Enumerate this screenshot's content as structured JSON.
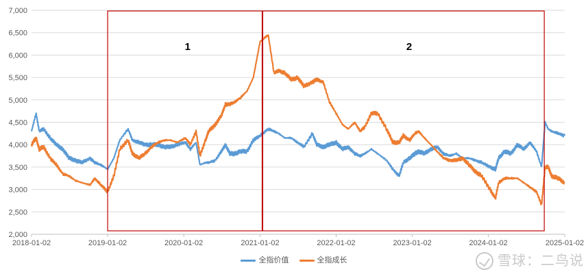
{
  "chart_data": {
    "type": "line",
    "title": "",
    "xlabel": "",
    "ylabel": "",
    "ylim": [
      2000,
      7000
    ],
    "xlim": [
      "2018-01-02",
      "2025-01-02"
    ],
    "yticks": [
      "2,000",
      "2,500",
      "3,000",
      "3,500",
      "4,000",
      "4,500",
      "5,000",
      "5,500",
      "6,000",
      "6,500",
      "7,000"
    ],
    "xticks": [
      "2018-01-02",
      "2019-01-02",
      "2020-01-02",
      "2021-01-02",
      "2022-01-02",
      "2023-01-02",
      "2024-01-02",
      "2025-01-02"
    ],
    "grid": true,
    "legend": "bottom",
    "series": [
      {
        "name": "全指价值",
        "color": "#5b9bd5",
        "x": [
          "2018-01-02",
          "2018-01-24",
          "2018-02-08",
          "2018-03-01",
          "2018-04-01",
          "2018-05-01",
          "2018-06-01",
          "2018-07-01",
          "2018-08-01",
          "2018-09-01",
          "2018-10-10",
          "2018-11-01",
          "2018-12-01",
          "2019-01-02",
          "2019-02-01",
          "2019-03-01",
          "2019-04-10",
          "2019-05-01",
          "2019-06-01",
          "2019-07-01",
          "2019-08-01",
          "2019-09-01",
          "2019-10-01",
          "2019-11-01",
          "2019-12-01",
          "2020-01-10",
          "2020-02-03",
          "2020-03-01",
          "2020-03-20",
          "2020-04-15",
          "2020-05-01",
          "2020-06-01",
          "2020-07-01",
          "2020-07-20",
          "2020-08-10",
          "2020-09-01",
          "2020-10-01",
          "2020-11-01",
          "2020-12-01",
          "2021-01-02",
          "2021-02-10",
          "2021-03-10",
          "2021-04-01",
          "2021-05-01",
          "2021-06-01",
          "2021-07-01",
          "2021-08-01",
          "2021-09-10",
          "2021-10-01",
          "2021-11-01",
          "2021-12-01",
          "2022-01-02",
          "2022-02-01",
          "2022-03-01",
          "2022-04-01",
          "2022-04-27",
          "2022-05-20",
          "2022-06-20",
          "2022-07-20",
          "2022-09-01",
          "2022-10-01",
          "2022-10-31",
          "2022-11-20",
          "2022-12-20",
          "2023-01-15",
          "2023-02-01",
          "2023-03-01",
          "2023-04-01",
          "2023-05-01",
          "2023-06-01",
          "2023-07-01",
          "2023-08-01",
          "2023-09-01",
          "2023-10-01",
          "2023-11-01",
          "2023-12-01",
          "2024-01-10",
          "2024-02-05",
          "2024-02-20",
          "2024-03-20",
          "2024-04-20",
          "2024-05-20",
          "2024-06-20",
          "2024-07-20",
          "2024-08-20",
          "2024-09-13",
          "2024-09-30",
          "2024-10-15",
          "2024-11-01",
          "2024-12-01",
          "2025-01-02"
        ],
        "y": [
          4300,
          4700,
          4300,
          4350,
          4150,
          4000,
          3900,
          3700,
          3650,
          3600,
          3700,
          3600,
          3550,
          3450,
          3700,
          4100,
          4350,
          4100,
          4050,
          4000,
          4000,
          4000,
          3950,
          3950,
          4000,
          4050,
          3900,
          4050,
          3550,
          3600,
          3600,
          3650,
          3850,
          4000,
          3800,
          3800,
          3850,
          3850,
          4100,
          4200,
          4350,
          4300,
          4250,
          4150,
          4150,
          4050,
          3950,
          4250,
          4000,
          3950,
          4000,
          4050,
          3900,
          3950,
          3800,
          3750,
          3800,
          3900,
          3800,
          3650,
          3450,
          3300,
          3600,
          3700,
          3800,
          3850,
          3800,
          3900,
          3950,
          3800,
          3750,
          3800,
          3700,
          3700,
          3650,
          3600,
          3500,
          3450,
          3700,
          3850,
          3800,
          4000,
          3900,
          4050,
          3850,
          3500,
          4500,
          4350,
          4300,
          4250,
          4200
        ]
      },
      {
        "name": "全指成长",
        "color": "#ed7d31",
        "x": [
          "2018-01-02",
          "2018-01-24",
          "2018-02-08",
          "2018-03-01",
          "2018-04-01",
          "2018-05-01",
          "2018-06-01",
          "2018-07-01",
          "2018-08-01",
          "2018-09-01",
          "2018-10-10",
          "2018-11-01",
          "2018-12-01",
          "2019-01-02",
          "2019-02-01",
          "2019-03-01",
          "2019-04-10",
          "2019-05-01",
          "2019-06-01",
          "2019-07-01",
          "2019-08-01",
          "2019-09-01",
          "2019-10-01",
          "2019-11-01",
          "2019-12-01",
          "2020-01-10",
          "2020-02-03",
          "2020-03-01",
          "2020-03-20",
          "2020-04-15",
          "2020-05-01",
          "2020-06-01",
          "2020-07-01",
          "2020-07-20",
          "2020-08-10",
          "2020-09-01",
          "2020-10-01",
          "2020-11-01",
          "2020-12-01",
          "2021-01-02",
          "2021-02-10",
          "2021-03-10",
          "2021-04-01",
          "2021-05-01",
          "2021-06-01",
          "2021-07-01",
          "2021-08-01",
          "2021-09-10",
          "2021-10-01",
          "2021-11-01",
          "2021-12-01",
          "2022-01-02",
          "2022-02-01",
          "2022-03-01",
          "2022-04-01",
          "2022-04-27",
          "2022-05-20",
          "2022-06-20",
          "2022-07-20",
          "2022-09-01",
          "2022-10-01",
          "2022-10-31",
          "2022-11-20",
          "2022-12-20",
          "2023-01-15",
          "2023-02-01",
          "2023-03-01",
          "2023-04-01",
          "2023-05-01",
          "2023-06-01",
          "2023-07-01",
          "2023-08-01",
          "2023-09-01",
          "2023-10-01",
          "2023-11-01",
          "2023-12-01",
          "2024-01-10",
          "2024-02-05",
          "2024-02-20",
          "2024-03-20",
          "2024-04-20",
          "2024-05-20",
          "2024-06-20",
          "2024-07-20",
          "2024-08-20",
          "2024-09-13",
          "2024-09-30",
          "2024-10-15",
          "2024-11-01",
          "2024-12-01",
          "2025-01-02"
        ],
        "y": [
          4000,
          4150,
          3900,
          3950,
          3700,
          3550,
          3350,
          3300,
          3200,
          3150,
          3100,
          3250,
          3100,
          2950,
          3300,
          3900,
          4100,
          3800,
          3700,
          3800,
          3950,
          4050,
          4100,
          4100,
          4050,
          4150,
          4000,
          4300,
          3750,
          4100,
          4300,
          4450,
          4650,
          4900,
          4900,
          4950,
          5050,
          5200,
          5500,
          6300,
          6450,
          5600,
          5650,
          5600,
          5450,
          5500,
          5300,
          5400,
          5450,
          5400,
          4950,
          4700,
          4450,
          4350,
          4500,
          4300,
          4400,
          4700,
          4700,
          4350,
          4050,
          4050,
          4200,
          4100,
          4250,
          4300,
          4150,
          4000,
          3850,
          3700,
          3650,
          3650,
          3700,
          3550,
          3400,
          3300,
          3000,
          2800,
          3150,
          3250,
          3250,
          3250,
          3150,
          3050,
          2950,
          2650,
          3500,
          3500,
          3300,
          3250,
          3150
        ]
      }
    ],
    "annotations": [
      {
        "label": "1",
        "x_start": "2019-01-02",
        "x_end": "2021-01-12",
        "color": "#c00000"
      },
      {
        "label": "2",
        "x_start": "2021-01-15",
        "x_end": "2024-09-26",
        "color": "#c00000"
      }
    ]
  },
  "watermark": "雪球：二鸟说"
}
